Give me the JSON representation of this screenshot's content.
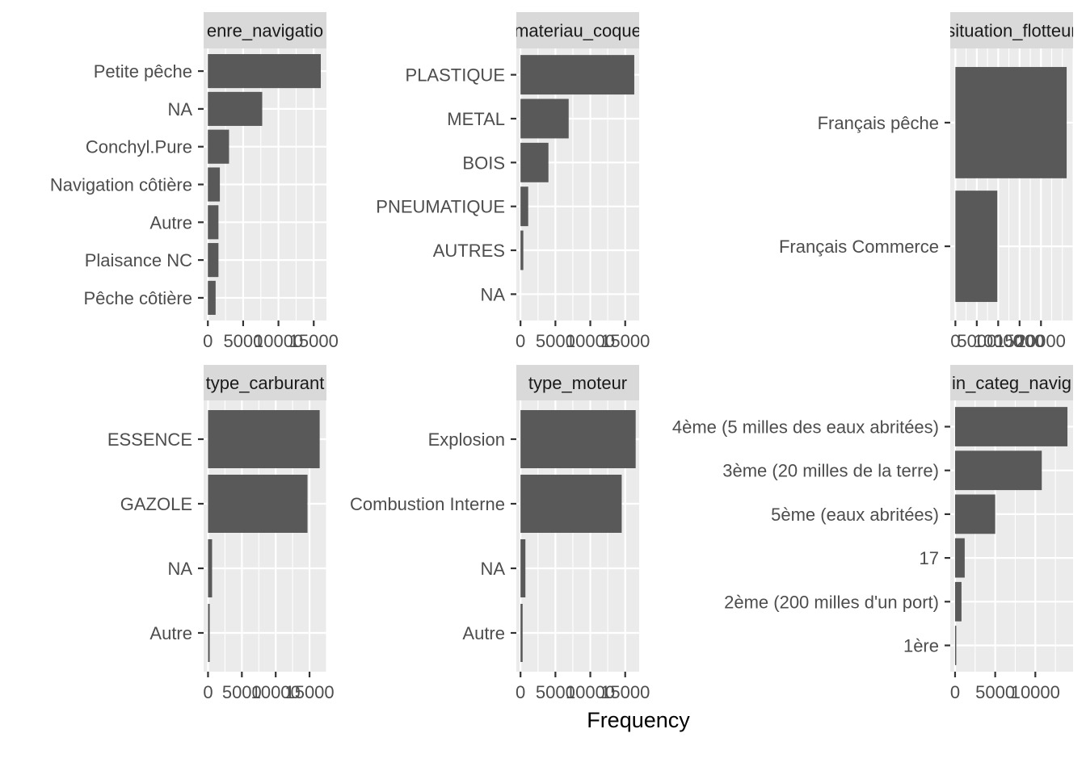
{
  "x_axis_title": "Frequency",
  "chart_data": [
    {
      "type": "bar",
      "orientation": "horizontal",
      "strip": "genre_navigation",
      "strip_visible": "enre_navigatio",
      "categories": [
        "Petite pêche",
        "NA",
        "Conchyl.Pure",
        "Navigation côtière",
        "Autre",
        "Plaisance NC",
        "Pêche côtière"
      ],
      "values": [
        16000,
        7700,
        3000,
        1700,
        1500,
        1500,
        1100
      ],
      "xlim": [
        -600,
        16800
      ],
      "x_ticks": [
        0,
        5000,
        10000,
        15000
      ],
      "x_tick_labels": [
        "0",
        "5000",
        "10000",
        "15000"
      ]
    },
    {
      "type": "bar",
      "orientation": "horizontal",
      "strip": "materiau_coque",
      "strip_visible": "materiau_coque",
      "categories": [
        "PLASTIQUE",
        "METAL",
        "BOIS",
        "PNEUMATIQUE",
        "AUTRES",
        "NA"
      ],
      "values": [
        16300,
        6900,
        4000,
        1100,
        400,
        0
      ],
      "xlim": [
        -600,
        17000
      ],
      "x_ticks": [
        0,
        5000,
        10000,
        15000
      ],
      "x_tick_labels": [
        "0",
        "5000",
        "10000",
        "15000"
      ]
    },
    {
      "type": "bar",
      "orientation": "horizontal",
      "strip": "situation_flotteur",
      "strip_visible": "situation_flotteur",
      "categories": [
        "Français pêche",
        "Français Commerce"
      ],
      "values": [
        26000,
        9800
      ],
      "xlim": [
        -1200,
        27500
      ],
      "x_ticks": [
        0,
        5000,
        10000,
        15000,
        20000
      ],
      "x_tick_labels": [
        "0",
        "5000",
        "10000",
        "15000",
        "20000"
      ]
    },
    {
      "type": "bar",
      "orientation": "horizontal",
      "strip": "type_carburant",
      "strip_visible": "type_carburant",
      "categories": [
        "ESSENCE",
        "GAZOLE",
        "NA",
        "Autre"
      ],
      "values": [
        16500,
        14700,
        600,
        250
      ],
      "xlim": [
        -650,
        17500
      ],
      "x_ticks": [
        0,
        5000,
        10000,
        15000
      ],
      "x_tick_labels": [
        "0",
        "5000",
        "10000",
        "15000"
      ]
    },
    {
      "type": "bar",
      "orientation": "horizontal",
      "strip": "type_moteur",
      "strip_visible": "type_moteur",
      "categories": [
        "Explosion",
        "Combustion Interne",
        "NA",
        "Autre"
      ],
      "values": [
        16500,
        14500,
        700,
        300
      ],
      "xlim": [
        -600,
        17000
      ],
      "x_ticks": [
        0,
        5000,
        10000,
        15000
      ],
      "x_tick_labels": [
        "0",
        "5000",
        "10000",
        "15000"
      ]
    },
    {
      "type": "bar",
      "orientation": "horizontal",
      "strip": "fin_categ_navigation",
      "strip_visible": "in_categ_navig",
      "categories": [
        "4ème (5 milles des eaux abritées)",
        "3ème (20 milles de la terre)",
        "5ème (eaux abritées)",
        "17",
        "2ème (200 milles d'un port)",
        "1ère"
      ],
      "values": [
        14000,
        10800,
        5000,
        1200,
        800,
        150
      ],
      "xlim": [
        -600,
        14700
      ],
      "x_ticks": [
        0,
        5000,
        10000
      ],
      "x_tick_labels": [
        "0",
        "5000",
        "10000"
      ]
    }
  ]
}
